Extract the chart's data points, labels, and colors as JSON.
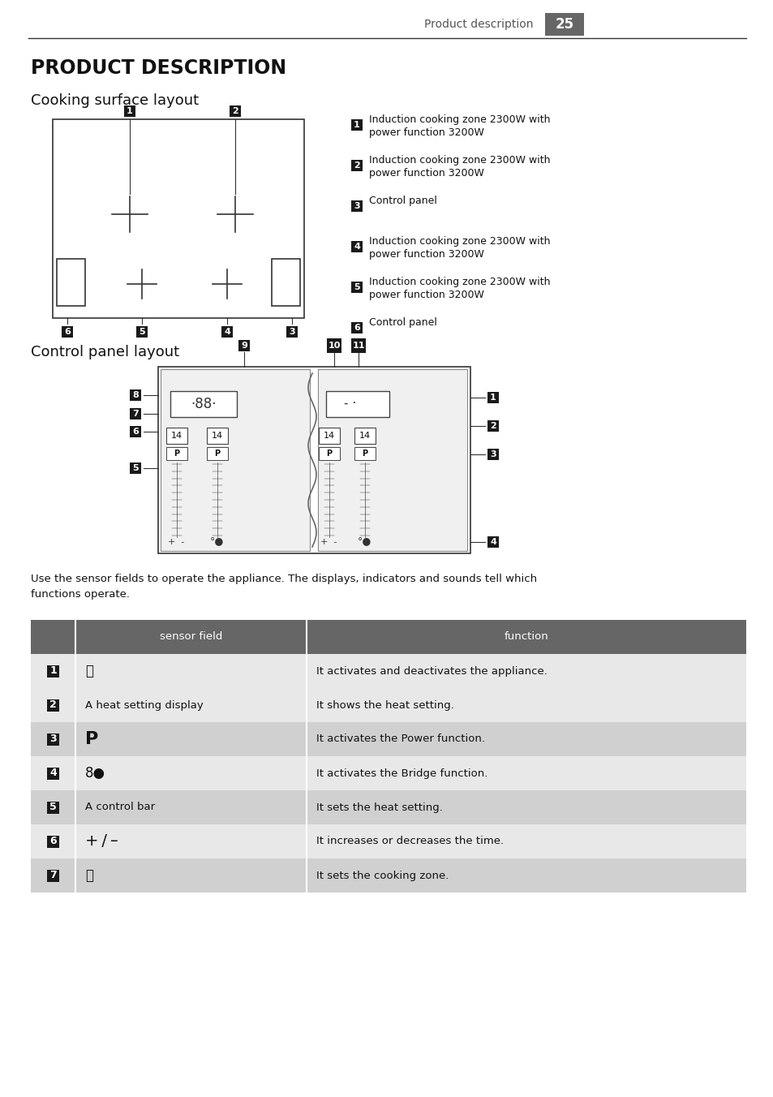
{
  "page_header": "Product description",
  "page_number": "25",
  "main_title": "PRODUCT DESCRIPTION",
  "section1_title": "Cooking surface layout",
  "section2_title": "Control panel layout",
  "cooking_items": [
    {
      "num": "1",
      "text": "Induction cooking zone 2300W with\npower function 3200W"
    },
    {
      "num": "2",
      "text": "Induction cooking zone 2300W with\npower function 3200W"
    },
    {
      "num": "3",
      "text": "Control panel"
    },
    {
      "num": "4",
      "text": "Induction cooking zone 2300W with\npower function 3200W"
    },
    {
      "num": "5",
      "text": "Induction cooking zone 2300W with\npower function 3200W"
    },
    {
      "num": "6",
      "text": "Control panel"
    }
  ],
  "table_header": [
    "",
    "sensor field",
    "function"
  ],
  "table_rows": [
    {
      "num": "1",
      "sensor": "ⓘ",
      "sensor_fontsize": 12,
      "sensor_bold": false,
      "function": "It activates and deactivates the appliance."
    },
    {
      "num": "2",
      "sensor": "A heat setting display",
      "sensor_fontsize": 9.5,
      "sensor_bold": false,
      "function": "It shows the heat setting."
    },
    {
      "num": "3",
      "sensor": "P",
      "sensor_fontsize": 16,
      "sensor_bold": true,
      "function": "It activates the Power function."
    },
    {
      "num": "4",
      "sensor": "8●",
      "sensor_fontsize": 12,
      "sensor_bold": false,
      "function": "It activates the Bridge function."
    },
    {
      "num": "5",
      "sensor": "A control bar",
      "sensor_fontsize": 9.5,
      "sensor_bold": false,
      "function": "It sets the heat setting."
    },
    {
      "num": "6",
      "sensor": "+ / –",
      "sensor_fontsize": 14,
      "sensor_bold": false,
      "function": "It increases or decreases the time."
    },
    {
      "num": "7",
      "sensor": "⌚",
      "sensor_fontsize": 12,
      "sensor_bold": false,
      "function": "It sets the cooking zone."
    }
  ],
  "intro_text": "Use the sensor fields to operate the appliance. The displays, indicators and sounds tell which\nfunctions operate.",
  "bg_color": "#ffffff",
  "header_color": "#666666",
  "badge_color": "#1a1a1a",
  "table_header_color": "#666666",
  "table_row_light": "#e8e8e8",
  "table_row_dark": "#d0d0d0"
}
